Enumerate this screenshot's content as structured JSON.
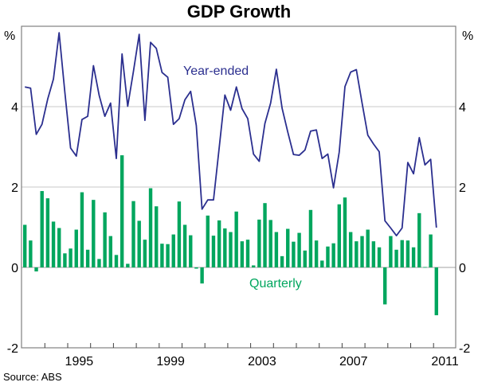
{
  "chart_data": {
    "type": "bar+line",
    "title": "GDP Growth",
    "ylabel_left": "%",
    "ylabel_right": "%",
    "ylim": [
      -2,
      6
    ],
    "yticks": [
      -2,
      0,
      2,
      4
    ],
    "xlim": [
      1993,
      2011.9
    ],
    "xtick_labels": [
      "1995",
      "1999",
      "2003",
      "2007",
      "2011"
    ],
    "x_start": "1993-Q1",
    "x_end": "2011-Q1",
    "grid": true,
    "source": "Source: ABS",
    "colors": {
      "year_ended": "#2b2f8f",
      "quarterly": "#00a65e",
      "grid": "#c8c8c8",
      "axis": "#808080"
    },
    "series": [
      {
        "name": "Year-ended",
        "type": "line",
        "values": [
          4.49,
          4.46,
          3.31,
          3.56,
          4.19,
          4.69,
          5.84,
          4.36,
          2.97,
          2.77,
          3.68,
          3.76,
          5.02,
          4.28,
          3.76,
          4.09,
          2.71,
          5.31,
          4.01,
          4.88,
          5.8,
          3.66,
          5.6,
          5.45,
          4.85,
          4.73,
          3.56,
          3.7,
          4.17,
          4.38,
          3.53,
          1.45,
          1.68,
          1.68,
          2.97,
          4.29,
          3.91,
          4.49,
          3.95,
          3.7,
          2.82,
          2.64,
          3.58,
          4.09,
          4.93,
          3.96,
          3.37,
          2.81,
          2.79,
          2.92,
          3.39,
          3.42,
          2.71,
          2.82,
          1.98,
          2.87,
          4.5,
          4.86,
          4.92,
          4.09,
          3.29,
          3.07,
          2.88,
          1.16,
          0.98,
          0.79,
          0.98,
          2.61,
          2.33,
          3.23,
          2.55,
          2.69,
          0.99
        ]
      },
      {
        "name": "Quarterly",
        "type": "bar",
        "values": [
          1.06,
          0.67,
          -0.1,
          1.9,
          1.72,
          1.14,
          0.98,
          0.35,
          0.47,
          0.94,
          1.87,
          0.44,
          1.68,
          0.21,
          1.37,
          0.78,
          0.31,
          2.79,
          0.09,
          1.65,
          1.16,
          0.69,
          1.97,
          1.52,
          0.59,
          0.58,
          0.82,
          1.64,
          1.06,
          0.8,
          -0.03,
          -0.4,
          1.29,
          0.79,
          1.17,
          0.97,
          0.88,
          1.39,
          0.65,
          0.69,
          0.05,
          1.19,
          1.6,
          1.18,
          0.88,
          0.28,
          0.96,
          0.64,
          0.86,
          0.42,
          1.43,
          0.67,
          0.17,
          0.52,
          0.6,
          1.57,
          1.74,
          0.88,
          0.65,
          0.78,
          0.94,
          0.65,
          0.5,
          -0.92,
          0.78,
          0.44,
          0.68,
          0.67,
          0.5,
          1.35,
          0.01,
          0.82,
          -1.19
        ]
      }
    ]
  }
}
